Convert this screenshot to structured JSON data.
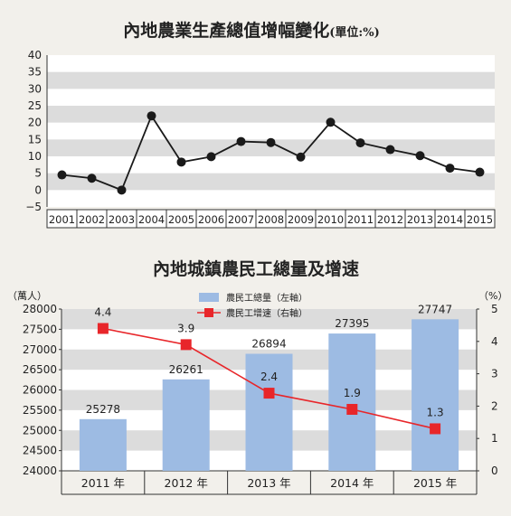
{
  "chart_data": [
    {
      "type": "line",
      "title": "內地農業生產總值增幅變化",
      "title_suffix": "(單位:%)",
      "categories": [
        "2001",
        "2002",
        "2003",
        "2004",
        "2005",
        "2006",
        "2007",
        "2008",
        "2009",
        "2010",
        "2011",
        "2012",
        "2013",
        "2014",
        "2015"
      ],
      "values": [
        4.5,
        3.5,
        0,
        22,
        8.3,
        9.9,
        14.4,
        14.1,
        9.8,
        20.1,
        14,
        12,
        10.2,
        6.5,
        5.3
      ],
      "ylim": [
        -5,
        40
      ],
      "yticks": [
        "40",
        "35",
        "30",
        "25",
        "20",
        "15",
        "10",
        "5",
        "0",
        "−5"
      ],
      "grid": true,
      "colors": {
        "line": "#1a1a1a",
        "band": "#dcdcdc"
      }
    },
    {
      "type": "bar",
      "title": "內地城鎮農民工總量及增速",
      "categories": [
        "2011 年",
        "2012 年",
        "2013 年",
        "2014 年",
        "2015 年"
      ],
      "y_left_unit": "（萬人）",
      "y_right_unit": "（%）",
      "y_left_ticks": [
        "28000",
        "27500",
        "27000",
        "26500",
        "26000",
        "25500",
        "25000",
        "24500",
        "24000"
      ],
      "y_right_ticks": [
        "5",
        "4",
        "3",
        "2",
        "1",
        "0"
      ],
      "ylim_left": [
        24000,
        28000
      ],
      "ylim_right": [
        0,
        5
      ],
      "legend": [
        "農民工總量（左軸）",
        "農民工增速（右軸）"
      ],
      "legend_position": "top",
      "series": [
        {
          "name": "農民工總量（左軸）",
          "type": "bar",
          "axis": "left",
          "values": [
            25278,
            26261,
            26894,
            27395,
            27747
          ],
          "labels": [
            "25278",
            "26261",
            "26894",
            "27395",
            "27747"
          ]
        },
        {
          "name": "農民工增速（右軸）",
          "type": "line",
          "axis": "right",
          "values": [
            4.4,
            3.9,
            2.4,
            1.9,
            1.3
          ],
          "labels": [
            "4.4",
            "3.9",
            "2.4",
            "1.9",
            "1.3"
          ]
        }
      ],
      "colors": {
        "bar": "#9dbbe3",
        "line": "#e8262a",
        "band": "#dcdcdc"
      }
    }
  ]
}
